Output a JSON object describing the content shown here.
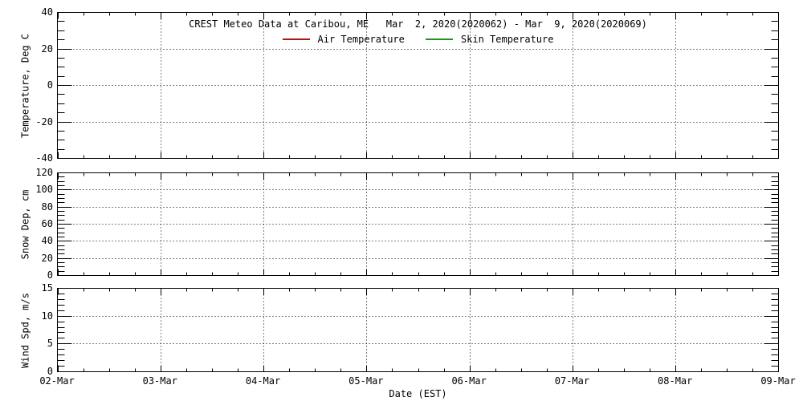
{
  "chart_data": {
    "type": "line",
    "title": "CREST Meteo Data at Caribou, ME   Mar  2, 2020(2020062) - Mar  9, 2020(2020069)",
    "legend": [
      {
        "label": "Air Temperature",
        "color": "#dd0000"
      },
      {
        "label": "Skin Temperature",
        "color": "#00aa00"
      }
    ],
    "legend_position": "top-center-inside-first-panel",
    "grid": "dotted",
    "x_axis": {
      "label": "Date (EST)",
      "tick_labels": [
        "02-Mar",
        "03-Mar",
        "04-Mar",
        "05-Mar",
        "06-Mar",
        "07-Mar",
        "08-Mar",
        "09-Mar"
      ],
      "minor_ticks_per_interval": 3
    },
    "panels": [
      {
        "name": "temperature",
        "ylabel": "Temperature, Deg C",
        "ylim": [
          -40,
          40
        ],
        "ytick_step": 20,
        "yminor_step": 5,
        "ytick_labels": [
          "40",
          "20",
          "0",
          "-20",
          "-40"
        ],
        "series": [
          {
            "name": "Air Temperature",
            "color": "#dd0000",
            "points": []
          },
          {
            "name": "Skin Temperature",
            "color": "#00aa00",
            "points": []
          }
        ]
      },
      {
        "name": "snow-depth",
        "ylabel": "Snow Dep, cm",
        "ylim": [
          0,
          120
        ],
        "ytick_step": 20,
        "yminor_step": 5,
        "ytick_labels": [
          "120",
          "100",
          "80",
          "60",
          "40",
          "20",
          "0"
        ],
        "series": []
      },
      {
        "name": "wind-speed",
        "ylabel": "Wind Spd, m/s",
        "ylim": [
          0,
          15
        ],
        "ytick_step": 5,
        "yminor_step": 1,
        "ytick_labels": [
          "15",
          "10",
          "5",
          "0"
        ],
        "series": []
      }
    ]
  }
}
